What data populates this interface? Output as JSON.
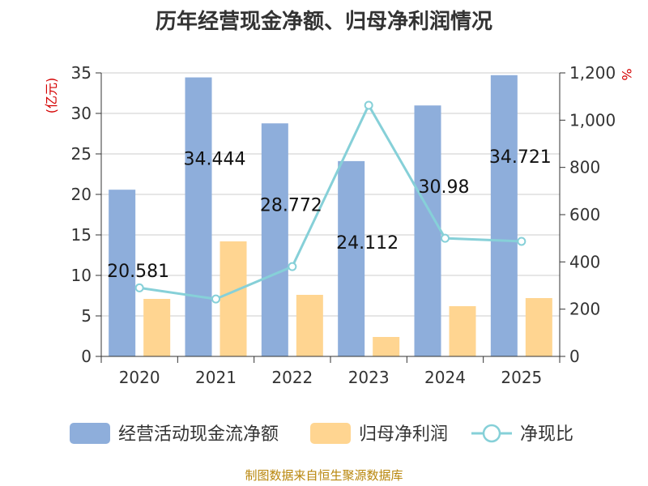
{
  "title": "历年经营现金净额、归母净利润情况",
  "source": "制图数据来自恒生聚源数据库",
  "colors": {
    "cash_bar": "#8eaedb",
    "profit_bar": "#ffd591",
    "ratio_line": "#86d0d8",
    "axis": "#333333",
    "grid": "#cccccc",
    "unit_text": "#d40000",
    "source_text": "#b8860b"
  },
  "chart_data": {
    "type": "bar",
    "title": "历年经营现金净额、归母净利润情况",
    "categories": [
      "2020",
      "2021",
      "2022",
      "2023",
      "2024",
      "2025"
    ],
    "left_unit": "(亿元)",
    "right_unit": "%",
    "left_ticks": [
      "0",
      "5",
      "10",
      "15",
      "20",
      "25",
      "30",
      "35"
    ],
    "right_ticks": [
      "0",
      "200",
      "400",
      "600",
      "800",
      "1,000",
      "1,200"
    ],
    "ylim_left": [
      0,
      35
    ],
    "ylim_right": [
      0,
      1200
    ],
    "grid": true,
    "legend_position": "bottom",
    "series": [
      {
        "name": "经营活动现金流净额",
        "axis": "left",
        "kind": "bar",
        "values": [
          20.581,
          34.444,
          28.772,
          24.112,
          30.98,
          34.721
        ],
        "labels": [
          "20.581",
          "34.444",
          "28.772",
          "24.112",
          "30.98",
          "34.721"
        ]
      },
      {
        "name": "归母净利润",
        "axis": "left",
        "kind": "bar",
        "values": [
          7.1,
          14.2,
          7.6,
          2.4,
          6.2,
          7.2
        ]
      },
      {
        "name": "净现比",
        "axis": "right",
        "kind": "line",
        "values": [
          290,
          243,
          380,
          1063,
          500,
          487
        ]
      }
    ]
  }
}
